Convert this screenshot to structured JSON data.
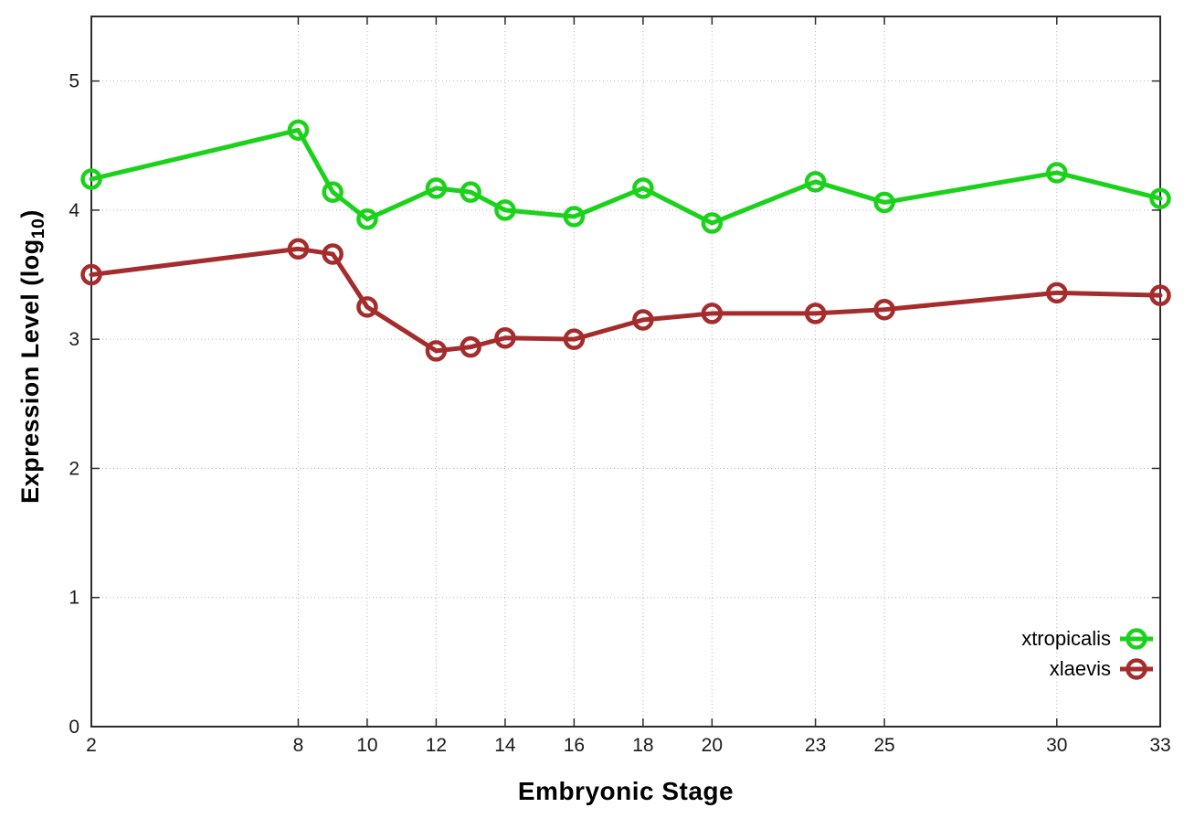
{
  "chart_data": {
    "type": "line",
    "title": "",
    "xlabel": "Embryonic Stage",
    "ylabel": "Expression Level (log10)",
    "ylabel_parts": {
      "prefix": "Expression Level (log",
      "sub": "10",
      "suffix": ")"
    },
    "x": [
      2,
      8,
      9,
      10,
      12,
      13,
      14,
      16,
      18,
      20,
      23,
      25,
      30,
      33
    ],
    "xticks": [
      2,
      8,
      10,
      12,
      14,
      16,
      18,
      20,
      23,
      25,
      30,
      33
    ],
    "yticks": [
      0,
      1,
      2,
      3,
      4,
      5
    ],
    "xlim": [
      2,
      33
    ],
    "ylim": [
      0,
      5.5
    ],
    "grid": true,
    "grid_style": "dotted",
    "legend_position": "inside-lower-right",
    "marker": "open-circle",
    "series": [
      {
        "name": "xtropicalis",
        "color": "#1bd21b",
        "values": [
          4.24,
          4.62,
          4.14,
          3.93,
          4.17,
          4.14,
          4.0,
          3.95,
          4.17,
          3.9,
          4.22,
          4.06,
          4.29,
          4.09
        ]
      },
      {
        "name": "xlaevis",
        "color": "#a52c2c",
        "values": [
          3.5,
          3.7,
          3.66,
          3.25,
          2.91,
          2.94,
          3.01,
          3.0,
          3.15,
          3.2,
          3.2,
          3.23,
          3.36,
          3.34
        ]
      }
    ],
    "colors": {
      "axis": "#2d2d2d",
      "grid": "#b3b3b3",
      "tick_label": "#1a1a1a",
      "background": "#ffffff"
    }
  }
}
